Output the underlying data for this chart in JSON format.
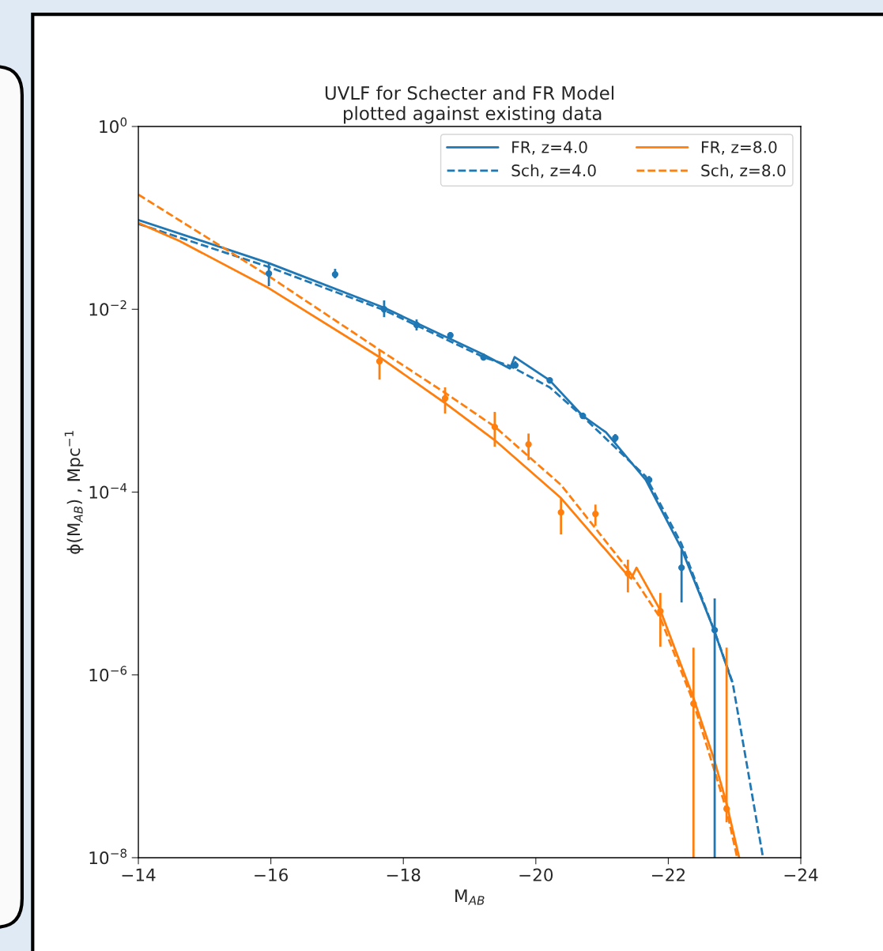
{
  "chart_data": {
    "type": "line",
    "title": "UVLF for Schecter and FR Model\n plotted against existing data",
    "xlabel": "M$_{AB}$",
    "ylabel": "ϕ(M$_{AB}$) , Mpc$^{−1}$",
    "log": "y",
    "legend": "top right",
    "xlim": [
      -14,
      -24
    ],
    "xticks": [
      {
        "value": -14,
        "label": "−14"
      },
      {
        "value": -16,
        "label": "−16"
      },
      {
        "value": -18,
        "label": "−18"
      },
      {
        "value": -20,
        "label": "−20"
      },
      {
        "value": -22,
        "label": "−22"
      },
      {
        "value": -24,
        "label": "−24"
      }
    ],
    "ylim": [
      1e-08,
      1
    ],
    "yticks": [
      {
        "value": 1e-08,
        "label": "10$^{−8}$"
      },
      {
        "value": 1e-06,
        "label": "10$^{−6}$"
      },
      {
        "value": 0.0001,
        "label": "10$^{−4}$"
      },
      {
        "value": 0.01,
        "label": "10$^{−2}$"
      },
      {
        "value": 1,
        "label": "10$^{0}$"
      }
    ],
    "series": [
      {
        "name": "FR, z=4.0",
        "line_style": "solid",
        "color": "#1f77b4",
        "x": [
          -14,
          -15.97,
          -17.71,
          -19.21,
          -19.61,
          -19.68,
          -20.21,
          -20.71,
          -21.06,
          -21.66,
          -22.2,
          -22.69,
          -22.96
        ],
        "values": [
          0.095,
          0.032,
          0.0104,
          0.0032,
          0.00225,
          0.003,
          0.00167,
          0.00068,
          0.00045,
          0.000136,
          2.4e-05,
          3.1e-06,
          8.5e-07
        ]
      },
      {
        "name": "Sch, z=4.0",
        "line_style": "dashed",
        "color": "#1f77b4",
        "x": [
          -14,
          -15.97,
          -17.71,
          -19.21,
          -19.61,
          -20.21,
          -20.71,
          -21.66,
          -22.2,
          -22.69,
          -22.97,
          -23.43
        ],
        "values": [
          0.086,
          0.029,
          0.0098,
          0.003,
          0.0024,
          0.0014,
          0.00067,
          0.000148,
          2.7e-05,
          3.1e-06,
          8.3e-07,
          1e-08
        ]
      },
      {
        "name": "FR, z=8.0",
        "line_style": "solid",
        "color": "#ff7f0e",
        "x": [
          -14,
          -14.62,
          -15.97,
          -17.64,
          -18.63,
          -19.38,
          -20.38,
          -21.39,
          -21.44,
          -21.52,
          -21.88,
          -22.38,
          -22.69,
          -22.88,
          -23.07
        ],
        "values": [
          0.088,
          0.056,
          0.017,
          0.003,
          0.00094,
          0.00037,
          8.6e-05,
          1.22e-05,
          1.13e-05,
          1.49e-05,
          5.1e-06,
          5.6e-07,
          1.2e-07,
          3.9e-08,
          1e-08
        ]
      },
      {
        "name": "Sch, z=8.0",
        "line_style": "dashed",
        "color": "#ff7f0e",
        "x": [
          -14,
          -15.97,
          -17.64,
          -18.63,
          -19.38,
          -20.38,
          -21.39,
          -21.88,
          -22.38,
          -22.88,
          -23.04
        ],
        "values": [
          0.18,
          0.023,
          0.0036,
          0.00122,
          0.00052,
          0.00012,
          1.43e-05,
          4.2e-06,
          5e-07,
          3.3e-08,
          1e-08
        ]
      },
      {
        "type": "scatter",
        "marker": "circle",
        "color": "#1f77b4",
        "x": [
          -15.97,
          -16.97,
          -17.71,
          -18.2,
          -18.71,
          -19.21,
          -19.69,
          -20.21,
          -20.71,
          -21.2,
          -21.71,
          -22.2,
          -22.7
        ],
        "values": [
          0.0246,
          0.0241,
          0.01,
          0.00675,
          0.0052,
          0.00298,
          0.00244,
          0.00167,
          0.000682,
          0.000391,
          0.000136,
          1.49e-05,
          3.09e-06
        ],
        "errors": [
          [
            0.0179,
            0.0325
          ],
          [
            0.0218,
            0.0277
          ],
          [
            0.0082,
            0.0125
          ],
          [
            0.00586,
            0.00774
          ],
          [
            0.00481,
            0.00564
          ],
          [
            0.00275,
            0.00329
          ],
          [
            0.00225,
            0.0027
          ],
          [
            0.00154,
            0.00177
          ],
          [
            0.00063,
            0.00074
          ],
          [
            0.000353,
            0.000431
          ],
          [
            0.000123,
            0.00015
          ],
          [
            6.2e-06,
            2.36e-05
          ],
          [
            1e-08,
            6.85e-06
          ]
        ]
      },
      {
        "type": "scatter",
        "marker": "circle",
        "color": "#ff7f0e",
        "x": [
          -17.64,
          -18.63,
          -19.38,
          -19.89,
          -20.38,
          -20.9,
          -21.39,
          -21.88,
          -22.38,
          -22.88
        ],
        "values": [
          0.0027,
          0.00106,
          0.000516,
          0.000333,
          6e-05,
          5.77e-05,
          1.29e-05,
          4.98e-06,
          4.84e-07,
          3.42e-08
        ],
        "errors": [
          [
            0.0017,
            0.00364
          ],
          [
            0.000724,
            0.0014
          ],
          [
            0.000314,
            0.000754
          ],
          [
            0.000223,
            0.000437
          ],
          [
            3.44e-05,
            8.6e-05
          ],
          [
            4.28e-05,
            7.3e-05
          ],
          [
            8e-06,
            1.82e-05
          ],
          [
            2.03e-06,
            7.87e-06
          ],
          [
            1e-08,
            1.99e-06
          ],
          [
            2.44e-08,
            1.99e-06
          ]
        ]
      }
    ]
  }
}
